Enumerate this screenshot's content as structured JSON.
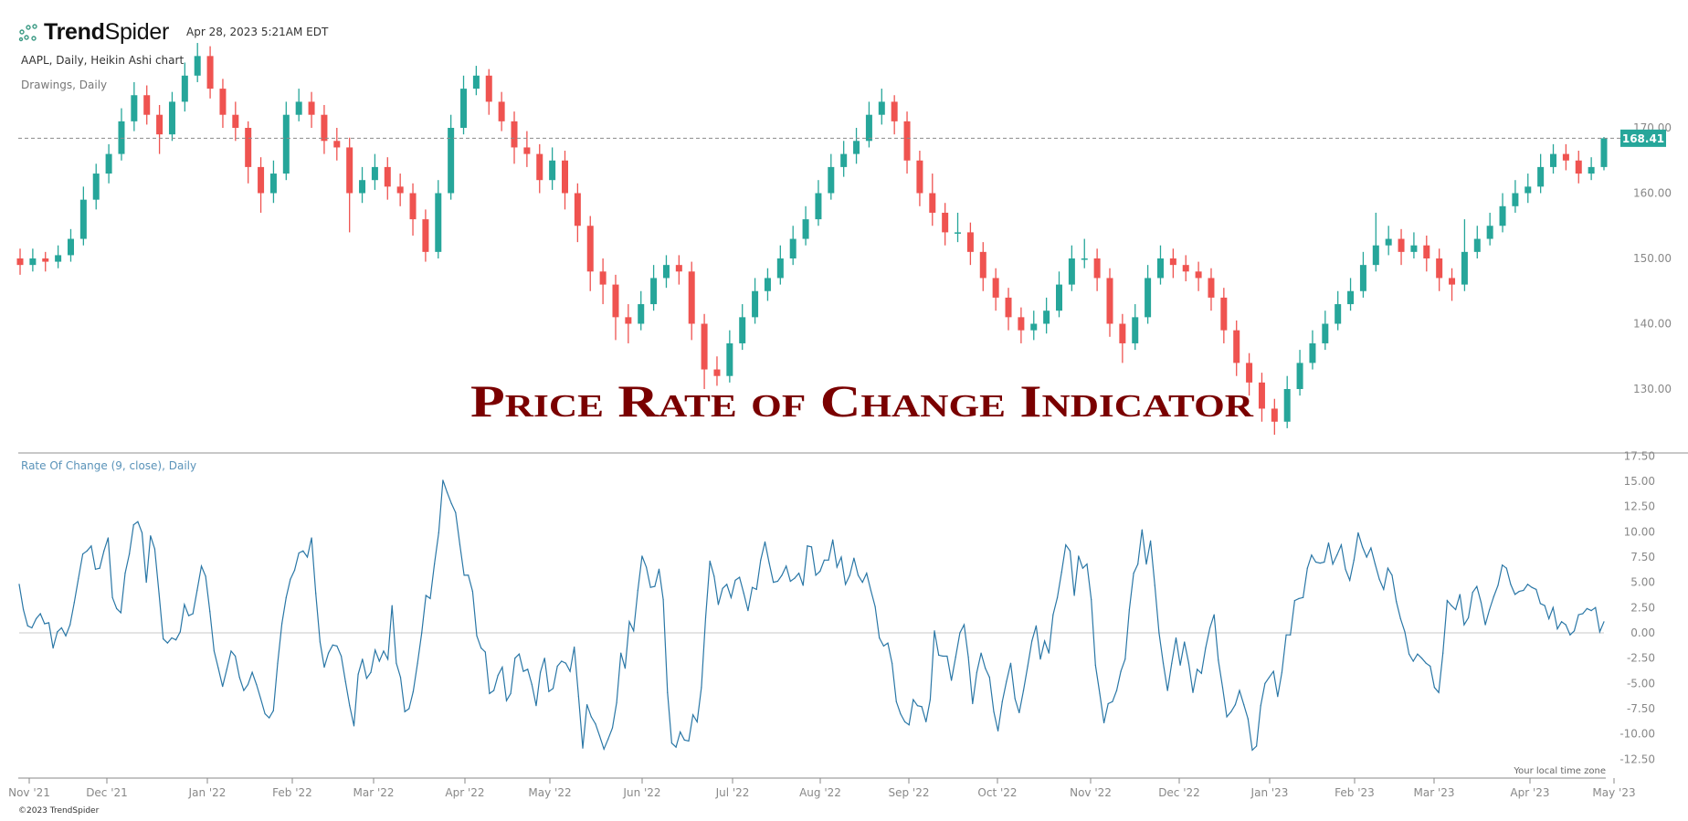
{
  "header": {
    "brand": {
      "bold": "Trend",
      "light": "Spider"
    },
    "timestamp": "Apr 28, 2023 5:21AM EDT",
    "symbol_line": "AAPL, Daily, Heikin Ashi chart",
    "drawings_line": "Drawings, Daily"
  },
  "overlay_title": "Price Rate of Change Indicator",
  "footer": {
    "copyright": "©2023 TrendSpider",
    "timezone_note": "Your local time zone"
  },
  "colors": {
    "up": "#26a69a",
    "down": "#ef5350",
    "roc_line": "#2a77a6",
    "title": "#7a0000",
    "last_price_badge": "#26a69a"
  },
  "icons": {
    "logo": "trendspider-node-logo-icon"
  },
  "chart_data": [
    {
      "type": "candlestick",
      "chart_style": "Heikin Ashi",
      "symbol": "AAPL",
      "interval": "Daily",
      "ylim": [
        123,
        183
      ],
      "yticks": [
        "130.00",
        "140.00",
        "150.00",
        "160.00",
        "170.00"
      ],
      "ytick_values": [
        130,
        140,
        150,
        160,
        170
      ],
      "last_price": 168.41,
      "last_price_label": "168.41",
      "grid": false,
      "candles_ohlc": [
        [
          150,
          151.5,
          147.5,
          149
        ],
        [
          149,
          151.5,
          148,
          150
        ],
        [
          150,
          151,
          148,
          149.5
        ],
        [
          149.5,
          152,
          148.5,
          150.5
        ],
        [
          150.5,
          154.5,
          149.5,
          153
        ],
        [
          153,
          161,
          152,
          159
        ],
        [
          159,
          164.5,
          157.5,
          163
        ],
        [
          163,
          167.5,
          161.5,
          166
        ],
        [
          166,
          173,
          165,
          171
        ],
        [
          171,
          177,
          169.5,
          175
        ],
        [
          175,
          176.5,
          170.5,
          172
        ],
        [
          172,
          173.5,
          166,
          169
        ],
        [
          169,
          175.5,
          168,
          174
        ],
        [
          174,
          180,
          172.5,
          178
        ],
        [
          178,
          183,
          177,
          181
        ],
        [
          181,
          182.5,
          174.5,
          176
        ],
        [
          176,
          177.5,
          170,
          172
        ],
        [
          172,
          174,
          168,
          170
        ],
        [
          170,
          171,
          161.5,
          164
        ],
        [
          164,
          165.5,
          157,
          160
        ],
        [
          160,
          165,
          158.5,
          163
        ],
        [
          163,
          174,
          162,
          172
        ],
        [
          172,
          176,
          171,
          174
        ],
        [
          174,
          175.5,
          170,
          172
        ],
        [
          172,
          173.5,
          166,
          168
        ],
        [
          168,
          170,
          165,
          167
        ],
        [
          167,
          168.5,
          154,
          160
        ],
        [
          160,
          164,
          158.5,
          162
        ],
        [
          162,
          166,
          160.5,
          164
        ],
        [
          164,
          165.5,
          159,
          161
        ],
        [
          161,
          163,
          158,
          160
        ],
        [
          160,
          161.5,
          153.5,
          156
        ],
        [
          156,
          157.5,
          149.5,
          151
        ],
        [
          151,
          162,
          150,
          160
        ],
        [
          160,
          172,
          159,
          170
        ],
        [
          170,
          178,
          169,
          176
        ],
        [
          176,
          179.5,
          175,
          178
        ],
        [
          178,
          179,
          172,
          174
        ],
        [
          174,
          175.5,
          169.5,
          171
        ],
        [
          171,
          172.5,
          164.5,
          167
        ],
        [
          167,
          169.5,
          164,
          166
        ],
        [
          166,
          167.5,
          160,
          162
        ],
        [
          162,
          167,
          160.5,
          165
        ],
        [
          165,
          166.5,
          157.5,
          160
        ],
        [
          160,
          161.5,
          152.5,
          155
        ],
        [
          155,
          156.5,
          145,
          148
        ],
        [
          148,
          150,
          143,
          146
        ],
        [
          146,
          147.5,
          137.5,
          141
        ],
        [
          141,
          143,
          137,
          140
        ],
        [
          140,
          145,
          139,
          143
        ],
        [
          143,
          149,
          142,
          147
        ],
        [
          147,
          150.5,
          145.5,
          149
        ],
        [
          149,
          150.5,
          146,
          148
        ],
        [
          148,
          149.5,
          137.5,
          140
        ],
        [
          140,
          141.5,
          130,
          133
        ],
        [
          133,
          135,
          130.5,
          132
        ],
        [
          132,
          139,
          131,
          137
        ],
        [
          137,
          143,
          136,
          141
        ],
        [
          141,
          147,
          140,
          145
        ],
        [
          145,
          148.5,
          143.5,
          147
        ],
        [
          147,
          152,
          146,
          150
        ],
        [
          150,
          155,
          149,
          153
        ],
        [
          153,
          158,
          152,
          156
        ],
        [
          156,
          162,
          155,
          160
        ],
        [
          160,
          166,
          159,
          164
        ],
        [
          164,
          168,
          162.5,
          166
        ],
        [
          166,
          170,
          164.5,
          168
        ],
        [
          168,
          174,
          167,
          172
        ],
        [
          172,
          176,
          170.5,
          174
        ],
        [
          174,
          175,
          169,
          171
        ],
        [
          171,
          172.5,
          163,
          165
        ],
        [
          165,
          166.5,
          158,
          160
        ],
        [
          160,
          163,
          155,
          157
        ],
        [
          157,
          158.5,
          152,
          154
        ],
        [
          154,
          157,
          152.5,
          154
        ],
        [
          154,
          155.5,
          149,
          151
        ],
        [
          151,
          152.5,
          145,
          147
        ],
        [
          147,
          148.5,
          142,
          144
        ],
        [
          144,
          145.5,
          139,
          141
        ],
        [
          141,
          142.5,
          137,
          139
        ],
        [
          139,
          142,
          137.5,
          140
        ],
        [
          140,
          144,
          138.5,
          142
        ],
        [
          142,
          148,
          141,
          146
        ],
        [
          146,
          152,
          145,
          150
        ],
        [
          150,
          153,
          148.5,
          150
        ],
        [
          150,
          151.5,
          145,
          147
        ],
        [
          147,
          148.5,
          138,
          140
        ],
        [
          140,
          141.5,
          134,
          137
        ],
        [
          137,
          143,
          136,
          141
        ],
        [
          141,
          149,
          140,
          147
        ],
        [
          147,
          152,
          146,
          150
        ],
        [
          150,
          151.5,
          147,
          149
        ],
        [
          149,
          150.5,
          146.5,
          148
        ],
        [
          148,
          149.5,
          145,
          147
        ],
        [
          147,
          148.5,
          142,
          144
        ],
        [
          144,
          145.5,
          137,
          139
        ],
        [
          139,
          140.5,
          132,
          134
        ],
        [
          134,
          135.5,
          129,
          131
        ],
        [
          131,
          132.5,
          125,
          127
        ],
        [
          127,
          128.5,
          123,
          125
        ],
        [
          125,
          132,
          124,
          130
        ],
        [
          130,
          136,
          129,
          134
        ],
        [
          134,
          139,
          133,
          137
        ],
        [
          137,
          142,
          136,
          140
        ],
        [
          140,
          145,
          139,
          143
        ],
        [
          143,
          147,
          142,
          145
        ],
        [
          145,
          151,
          144,
          149
        ],
        [
          149,
          157,
          148,
          152
        ],
        [
          152,
          155,
          150.5,
          153
        ],
        [
          153,
          154.5,
          149,
          151
        ],
        [
          151,
          154,
          150,
          152
        ],
        [
          152,
          153.5,
          148,
          150
        ],
        [
          150,
          151.5,
          145,
          147
        ],
        [
          147,
          148.5,
          143.5,
          146
        ],
        [
          146,
          156,
          145,
          151
        ],
        [
          151,
          155,
          150,
          153
        ],
        [
          153,
          157,
          152,
          155
        ],
        [
          155,
          160,
          154,
          158
        ],
        [
          158,
          162,
          157,
          160
        ],
        [
          160,
          163,
          158.5,
          161
        ],
        [
          161,
          166,
          160,
          164
        ],
        [
          164,
          167.5,
          163,
          166
        ],
        [
          166,
          167.5,
          163.5,
          165
        ],
        [
          165,
          166.5,
          161.5,
          163
        ],
        [
          163,
          165.5,
          162,
          164
        ],
        [
          164,
          168.6,
          163.5,
          168.41
        ]
      ]
    },
    {
      "type": "line",
      "title": "Rate Of Change (9, close), Daily",
      "ylim": [
        -12.5,
        17.5
      ],
      "yticks": [
        "17.50",
        "15.00",
        "12.50",
        "10.00",
        "7.50",
        "5.00",
        "2.50",
        "0.00",
        "-2.50",
        "-5.00",
        "-7.50",
        "-10.00",
        "-12.50"
      ],
      "ytick_values": [
        17.5,
        15,
        12.5,
        10,
        7.5,
        5,
        2.5,
        0,
        -2.5,
        -5,
        -7.5,
        -10,
        -12.5
      ],
      "zero_line": true,
      "grid": false,
      "values": [
        4.8,
        2.3,
        0.7,
        0.5,
        1.4,
        1.9,
        0.9,
        1.0,
        -1.5,
        0.1,
        0.5,
        -0.3,
        0.8,
        3.0,
        5.4,
        7.8,
        8.1,
        8.6,
        6.3,
        6.4,
        8.1,
        9.4,
        3.5,
        2.4,
        2.0,
        5.9,
        7.8,
        10.7,
        11.0,
        9.9,
        5.0,
        9.6,
        8.3,
        3.9,
        -0.6,
        -1.0,
        -0.5,
        -0.7,
        0.1,
        2.8,
        1.7,
        1.9,
        4.2,
        6.6,
        5.6,
        2.1,
        -1.8,
        -3.5,
        -5.3,
        -3.6,
        -1.8,
        -2.3,
        -4.4,
        -5.7,
        -5.1,
        -3.9,
        -5.1,
        -6.5,
        -8.0,
        -8.4,
        -7.7,
        -3.0,
        0.9,
        3.5,
        5.3,
        6.2,
        7.9,
        8.1,
        7.5,
        9.4,
        3.9,
        -0.9,
        -3.4,
        -2.0,
        -1.2,
        -1.3,
        -2.3,
        -4.8,
        -7.2,
        -9.2,
        -4.1,
        -2.6,
        -4.5,
        -3.9,
        -1.7,
        -2.8,
        -1.8,
        -2.6,
        2.7,
        -3.0,
        -4.4,
        -7.8,
        -7.5,
        -5.8,
        -3.0,
        0,
        3.7,
        3.4,
        6.8,
        9.9,
        15.1,
        13.9,
        12.8,
        11.9,
        8.7,
        5.7,
        5.7,
        4.1,
        -0.3,
        -1.5,
        -1.9,
        -6.0,
        -5.7,
        -4.2,
        -3.4,
        -6.7,
        -6.0,
        -2.5,
        -2.1,
        -3.8,
        -3.6,
        -5.1,
        -7.2,
        -3.9,
        -2.5,
        -5.8,
        -5.5,
        -3.3,
        -2.8,
        -3.0,
        -3.8,
        -1.4,
        -6.3,
        -11.4,
        -7.1,
        -8.3,
        -9.0,
        -10.2,
        -11.5,
        -10.5,
        -9.4,
        -6.9,
        -2.0,
        -3.5,
        1.1,
        0.2,
        4.2,
        7.6,
        6.5,
        4.5,
        4.6,
        6.3,
        3.3,
        -5.9,
        -10.9,
        -11.3,
        -9.8,
        -10.6,
        -10.7,
        -8.1,
        -8.8,
        -5.4,
        1.5,
        7.1,
        5.6,
        2.8,
        4.4,
        4.8,
        3.5,
        5.2,
        5.5,
        3.9,
        2.2,
        4.5,
        4.3,
        7.2,
        9.0,
        6.9,
        5.0,
        5.1,
        5.7,
        6.6,
        5.1,
        5.4,
        5.9,
        4.7,
        8.6,
        8.5,
        5.7,
        6.1,
        7.2,
        7.2,
        9.2,
        6.5,
        7.5,
        4.8,
        5.7,
        7.4,
        5.7,
        5.0,
        5.9,
        4.2,
        2.6,
        -0.5,
        -1.3,
        -1.0,
        -3.0,
        -6.8,
        -8.0,
        -8.8,
        -9.1,
        -6.6,
        -7.2,
        -7.3,
        -8.8,
        -6.6,
        0.2,
        -2.2,
        -2.3,
        -2.3,
        -4.7,
        -2.4,
        0,
        0.8,
        -2.4,
        -7.0,
        -3.9,
        -2.0,
        -3.5,
        -4.4,
        -7.8,
        -9.7,
        -6.8,
        -4.8,
        -3.0,
        -6.5,
        -7.9,
        -5.7,
        -3.3,
        -0.8,
        0.7,
        -2.6,
        -0.8,
        -2.0,
        1.8,
        3.5,
        6.0,
        8.7,
        8.1,
        3.7,
        7.6,
        6.4,
        6.8,
        3.3,
        -3.2,
        -6.0,
        -8.9,
        -7.0,
        -6.8,
        -5.7,
        -3.8,
        -2.6,
        2.3,
        5.9,
        6.8,
        10.2,
        6.8,
        9.1,
        4.7,
        0,
        -3.0,
        -5.7,
        -3.0,
        -0.5,
        -3.2,
        -0.9,
        -3.0,
        -5.9,
        -3.6,
        -4.0,
        -1.5,
        0.5,
        1.8,
        -2.7,
        -5.4,
        -8.3,
        -7.8,
        -7.1,
        -5.7,
        -7.1,
        -8.5,
        -11.6,
        -11.2,
        -7.2,
        -5.0,
        -4.4,
        -3.8,
        -6.3,
        -3.9,
        -0.2,
        -0.2,
        3.2,
        3.4,
        3.5,
        6.4,
        7.7,
        7.0,
        6.9,
        7.0,
        8.9,
        6.8,
        7.7,
        8.7,
        6.3,
        5.2,
        7.2,
        9.9,
        8.5,
        7.5,
        8.4,
        6.8,
        5.3,
        4.3,
        6.4,
        5.7,
        3.1,
        1.4,
        0.1,
        -2.1,
        -2.8,
        -2.1,
        -2.5,
        -3.0,
        -3.3,
        -5.4,
        -5.9,
        -2.0,
        3.2,
        2.7,
        2.3,
        3.8,
        0.8,
        1.5,
        4.0,
        4.6,
        3.0,
        0.8,
        2.3,
        3.6,
        4.7,
        6.7,
        6.4,
        4.8,
        3.8,
        4.1,
        4.2,
        4.8,
        4.5,
        4.3,
        2.9,
        2.7,
        1.4,
        2.5,
        0.4,
        1.1,
        0.8,
        -0.2,
        0.2,
        1.8,
        1.9,
        2.4,
        2.2,
        2.5,
        0.1,
        1.1
      ]
    },
    {
      "type": "time_axis",
      "xticks": [
        "Nov '21",
        "Dec '21",
        "Jan '22",
        "Feb '22",
        "Mar '22",
        "Apr '22",
        "May '22",
        "Jun '22",
        "Jul '22",
        "Aug '22",
        "Sep '22",
        "Oct '22",
        "Nov '22",
        "Dec '22",
        "Jan '23",
        "Feb '23",
        "Mar '23",
        "Apr '23",
        "May '23"
      ]
    }
  ]
}
